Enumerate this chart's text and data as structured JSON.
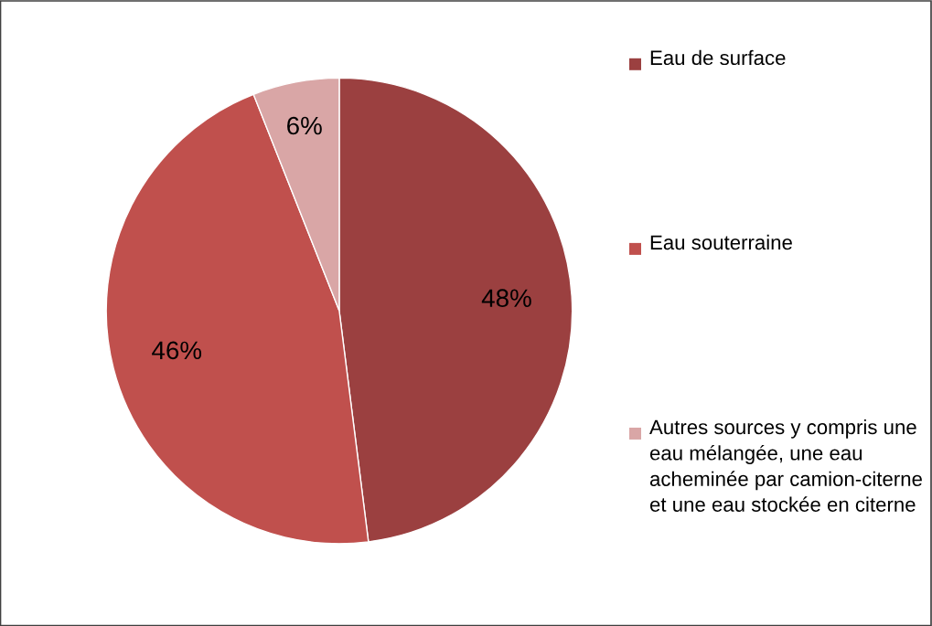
{
  "chart_data": {
    "type": "pie",
    "categories": [
      "Eau de surface",
      "Eau souterraine",
      "Autres sources y compris une eau mélangée, une eau acheminée par camion-citerne et une eau stockée en citerne"
    ],
    "values": [
      48,
      46,
      6
    ],
    "colors": [
      "#9b4040",
      "#c0504d",
      "#d9a6a6"
    ],
    "value_labels": [
      "48%",
      "46%",
      "6%"
    ],
    "legend": "right"
  }
}
